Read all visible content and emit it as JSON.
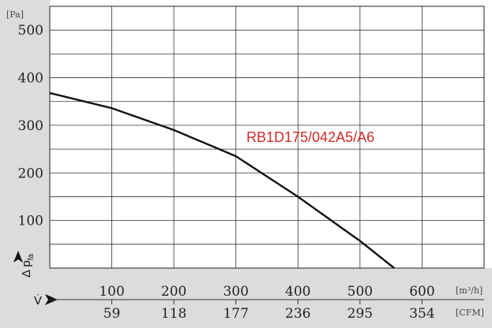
{
  "chart_data": {
    "type": "line",
    "y_unit": "[Pa]",
    "y_ticks": [
      "500",
      "400",
      "300",
      "200",
      "100"
    ],
    "ylim": [
      0,
      550
    ],
    "y_axis_symbol": "Δ p",
    "y_axis_subscript": "fa",
    "x_axis_symbol": "V̇",
    "x_unit_primary": "[m³/h]",
    "x_unit_secondary": "[CFM]",
    "x_ticks_primary": [
      "100",
      "200",
      "300",
      "400",
      "500",
      "600"
    ],
    "x_ticks_secondary": [
      "59",
      "118",
      "177",
      "236",
      "295",
      "354"
    ],
    "xlim": [
      0,
      700
    ],
    "grid": true,
    "series": [
      {
        "name": "RB1D175/042A5/A6",
        "color": "#d42a2a",
        "line_color": "#111111",
        "x": [
          0,
          100,
          200,
          300,
          400,
          500,
          555
        ],
        "y": [
          368,
          336,
          290,
          235,
          150,
          57,
          0
        ]
      }
    ]
  }
}
